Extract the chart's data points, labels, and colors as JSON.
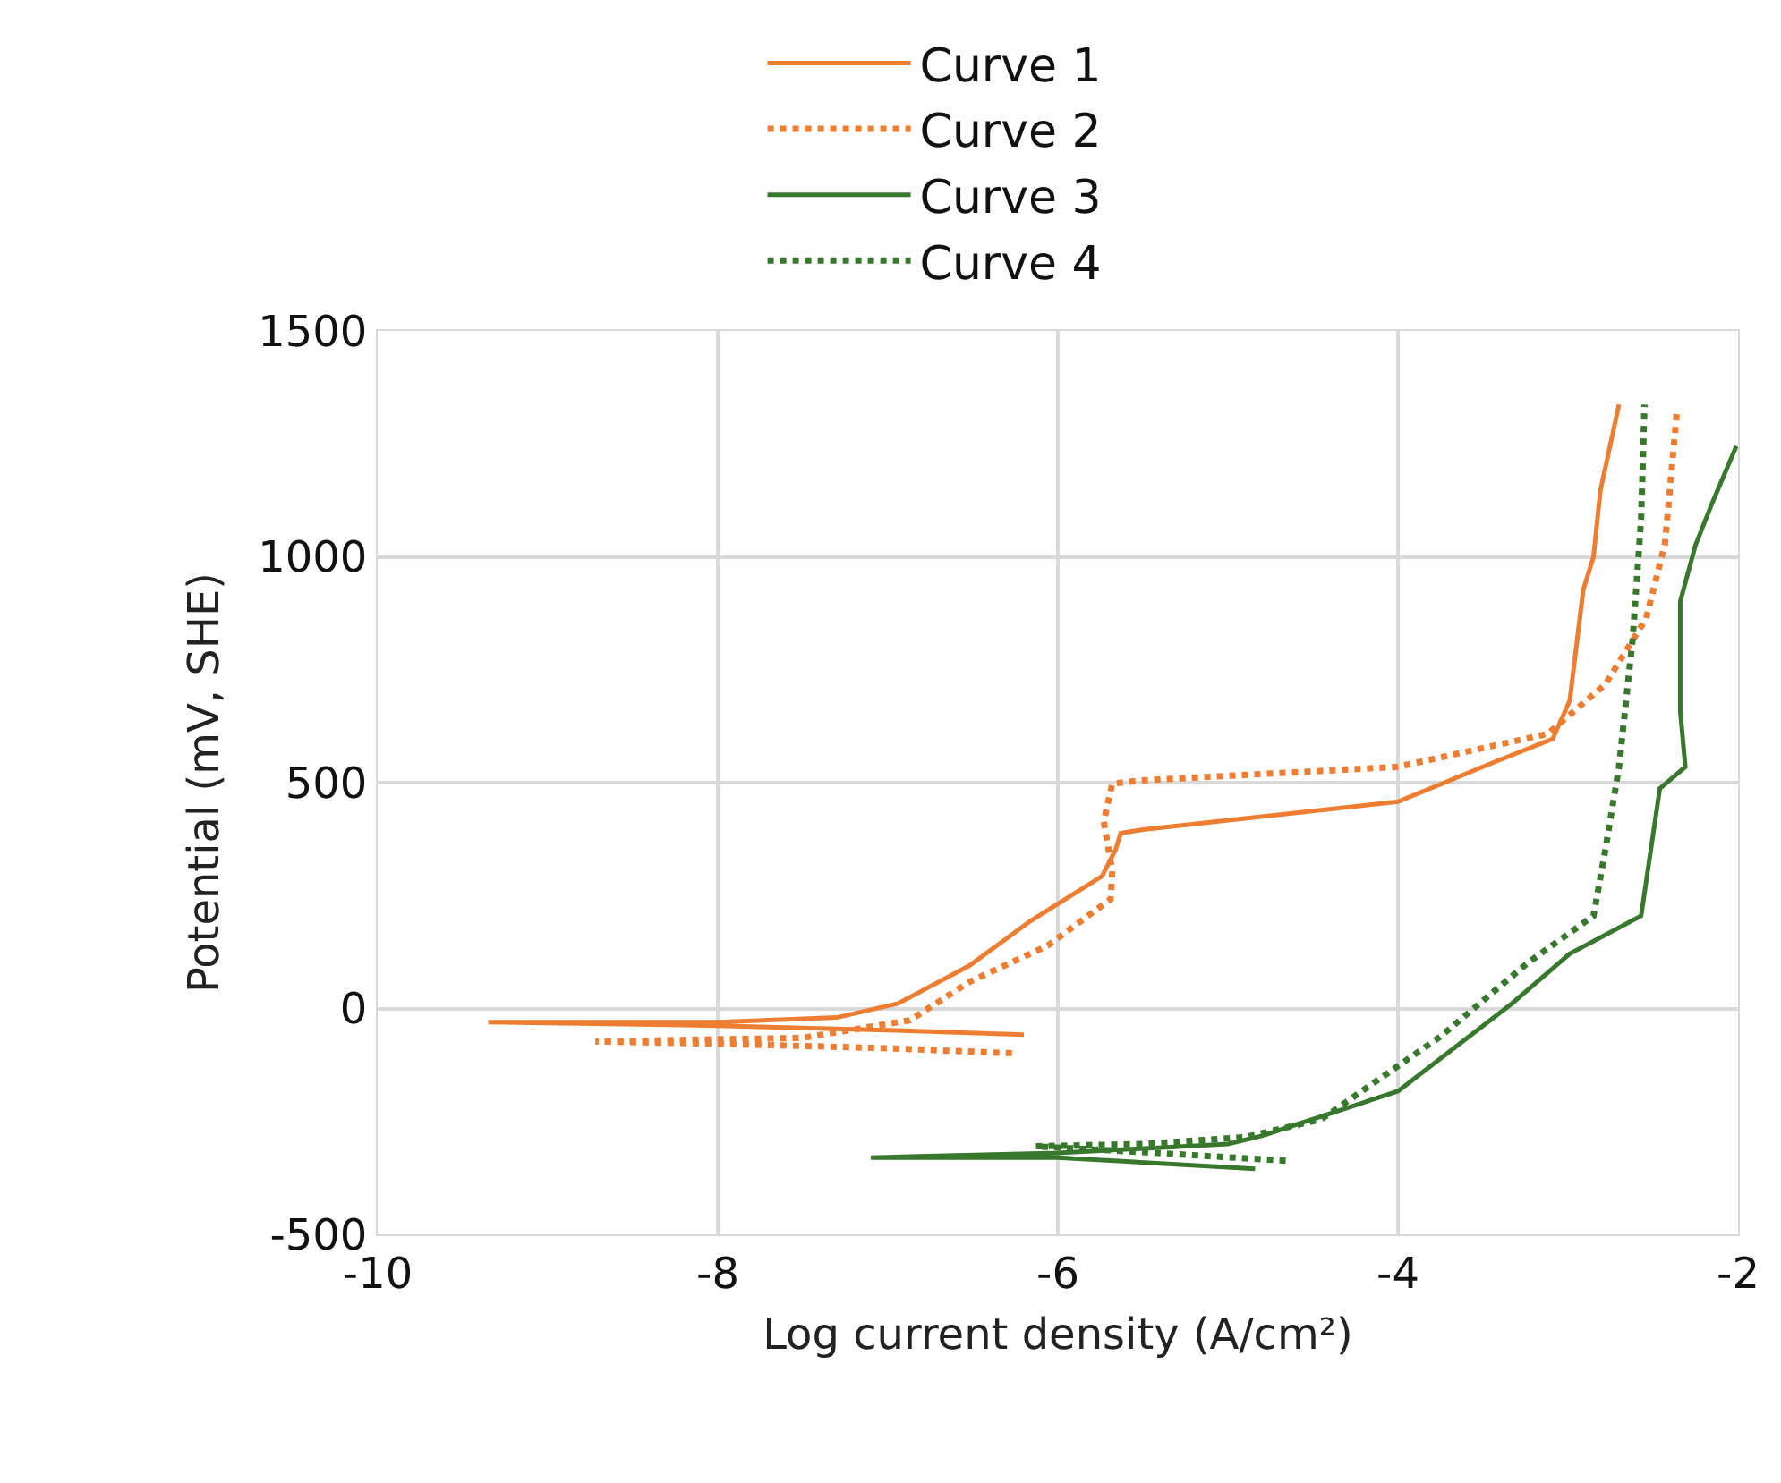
{
  "chart_data": {
    "type": "line",
    "xlabel": "Log current density (A/cm²)",
    "ylabel": "Potential (mV, SHE)",
    "xlim": [
      -10,
      -2
    ],
    "xticks": [
      -10,
      -8,
      -6,
      -4,
      -2
    ],
    "ylim": [
      -500,
      1500
    ],
    "yticks": [
      -500,
      0,
      500,
      1000,
      1500
    ],
    "grid": true,
    "legend": "top",
    "marker": "none",
    "series": [
      {
        "name": "Curve 1",
        "color": "#ed7d31",
        "line_style": "solid",
        "x": [
          -6.2,
          -7.0,
          -8.0,
          -9.35,
          -8.0,
          -7.3,
          -6.94,
          -6.52,
          -6.16,
          -5.74,
          -5.66,
          -5.63,
          -5.5,
          -4.0,
          -3.41,
          -3.09,
          -2.99,
          -2.91,
          -2.85,
          -2.81,
          -2.7
        ],
        "values": [
          -58,
          -48,
          -38,
          -30,
          -30,
          -20,
          11,
          95,
          194,
          293,
          352,
          388,
          396,
          458,
          549,
          597,
          681,
          927,
          1000,
          1146,
          1337
        ]
      },
      {
        "name": "Curve 2",
        "color": "#ed7d31",
        "line_style": "dotted",
        "x": [
          -6.27,
          -7.0,
          -8.0,
          -8.72,
          -7.5,
          -6.87,
          -6.52,
          -6.06,
          -5.69,
          -5.68,
          -5.73,
          -5.68,
          -5.5,
          -4.0,
          -3.12,
          -2.78,
          -2.54,
          -2.43,
          -2.36
        ],
        "values": [
          -99,
          -88,
          -78,
          -73,
          -65,
          -26,
          59,
          139,
          242,
          304,
          414,
          498,
          505,
          535,
          608,
          718,
          864,
          1029,
          1319
        ]
      },
      {
        "name": "Curve 3",
        "color": "#38782c",
        "line_style": "solid",
        "x": [
          -4.84,
          -6.0,
          -7.1,
          -6.0,
          -5.0,
          -4.8,
          -4.0,
          -3.33,
          -2.99,
          -2.57,
          -2.46,
          -2.31,
          -2.34,
          -2.34,
          -2.25,
          -2.15,
          -2.01
        ],
        "values": [
          -355,
          -330,
          -330,
          -320,
          -300,
          -282,
          -183,
          11,
          121,
          205,
          487,
          535,
          659,
          901,
          1026,
          1121,
          1245
        ]
      },
      {
        "name": "Curve 4",
        "color": "#38782c",
        "line_style": "dotted",
        "x": [
          -4.66,
          -5.5,
          -6.13,
          -5.5,
          -4.9,
          -4.45,
          -3.75,
          -3.23,
          -2.85,
          -2.78,
          -2.7,
          -2.62,
          -2.57,
          -2.55
        ],
        "values": [
          -337,
          -318,
          -305,
          -300,
          -285,
          -245,
          -62,
          103,
          205,
          352,
          535,
          817,
          1084,
          1337
        ]
      }
    ]
  }
}
